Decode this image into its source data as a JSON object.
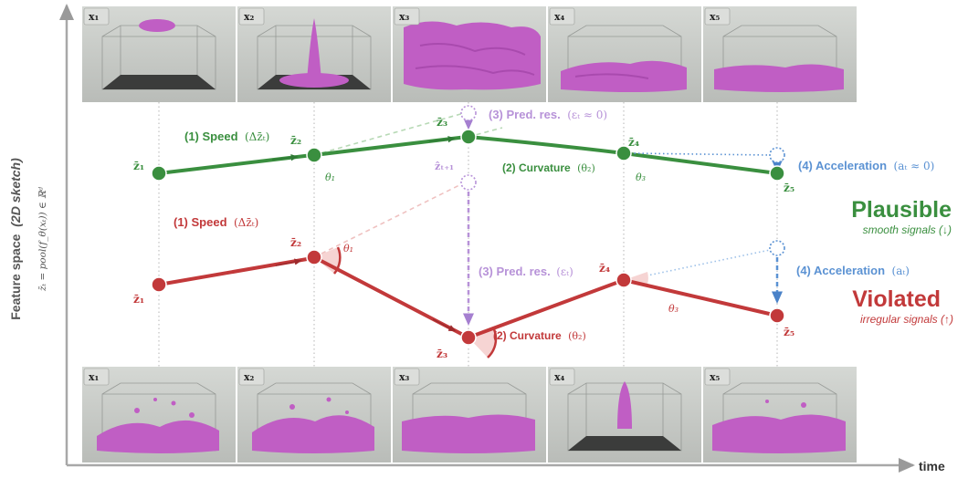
{
  "axes": {
    "y_title": "Feature space",
    "y_title_paren": "(2D sketch)",
    "y_formula": "z̄ₜ = pool(f_θ(xₜ)) ∈ ℝᵈ",
    "x_title": "time"
  },
  "top_frames": [
    "x₁",
    "x₂",
    "x₃",
    "x₄",
    "x₅"
  ],
  "bottom_frames": [
    "x₁",
    "x₂",
    "x₃",
    "x₄",
    "x₅"
  ],
  "plausible": {
    "title": "Plausible",
    "subtitle": "smooth signals (↓)",
    "node_labels": [
      "z̄₁",
      "z̄₂",
      "z̄₃",
      "z̄₄",
      "z̄₅"
    ],
    "speed": "(1) Speed",
    "speed_math": "(Δz̄ₜ)",
    "curvature": "(2) Curvature",
    "curvature_math": "(θ₂)",
    "pred": "(3) Pred. res.",
    "pred_math": "(εₜ ≈ 0)",
    "accel": "(4) Acceleration",
    "accel_math": "(aₜ ≈ 0)",
    "theta1": "θ₁",
    "theta3": "θ₃"
  },
  "violated": {
    "title": "Violated",
    "subtitle": "irregular signals (↑)",
    "node_labels": [
      "z̄₁",
      "z̄₂",
      "z̄₃",
      "z̄₄",
      "z̄₅"
    ],
    "speed": "(1) Speed",
    "speed_math": "(Δz̄ₜ)",
    "curvature": "(2) Curvature",
    "curvature_math": "(θ₂)",
    "pred": "(3) Pred. res.",
    "pred_math": "(εₜ)",
    "pred_node": "ẑₜ₊₁",
    "accel": "(4) Acceleration",
    "accel_math": "(aₜ)",
    "theta1": "θ₁",
    "theta3": "θ₃"
  },
  "colors": {
    "green": "#3a8f3f",
    "red": "#c2393a",
    "purple": "#b792d8",
    "blue": "#5b92d3",
    "frame_bg": "#c9ccc8",
    "fluid": "#c05ec4"
  }
}
